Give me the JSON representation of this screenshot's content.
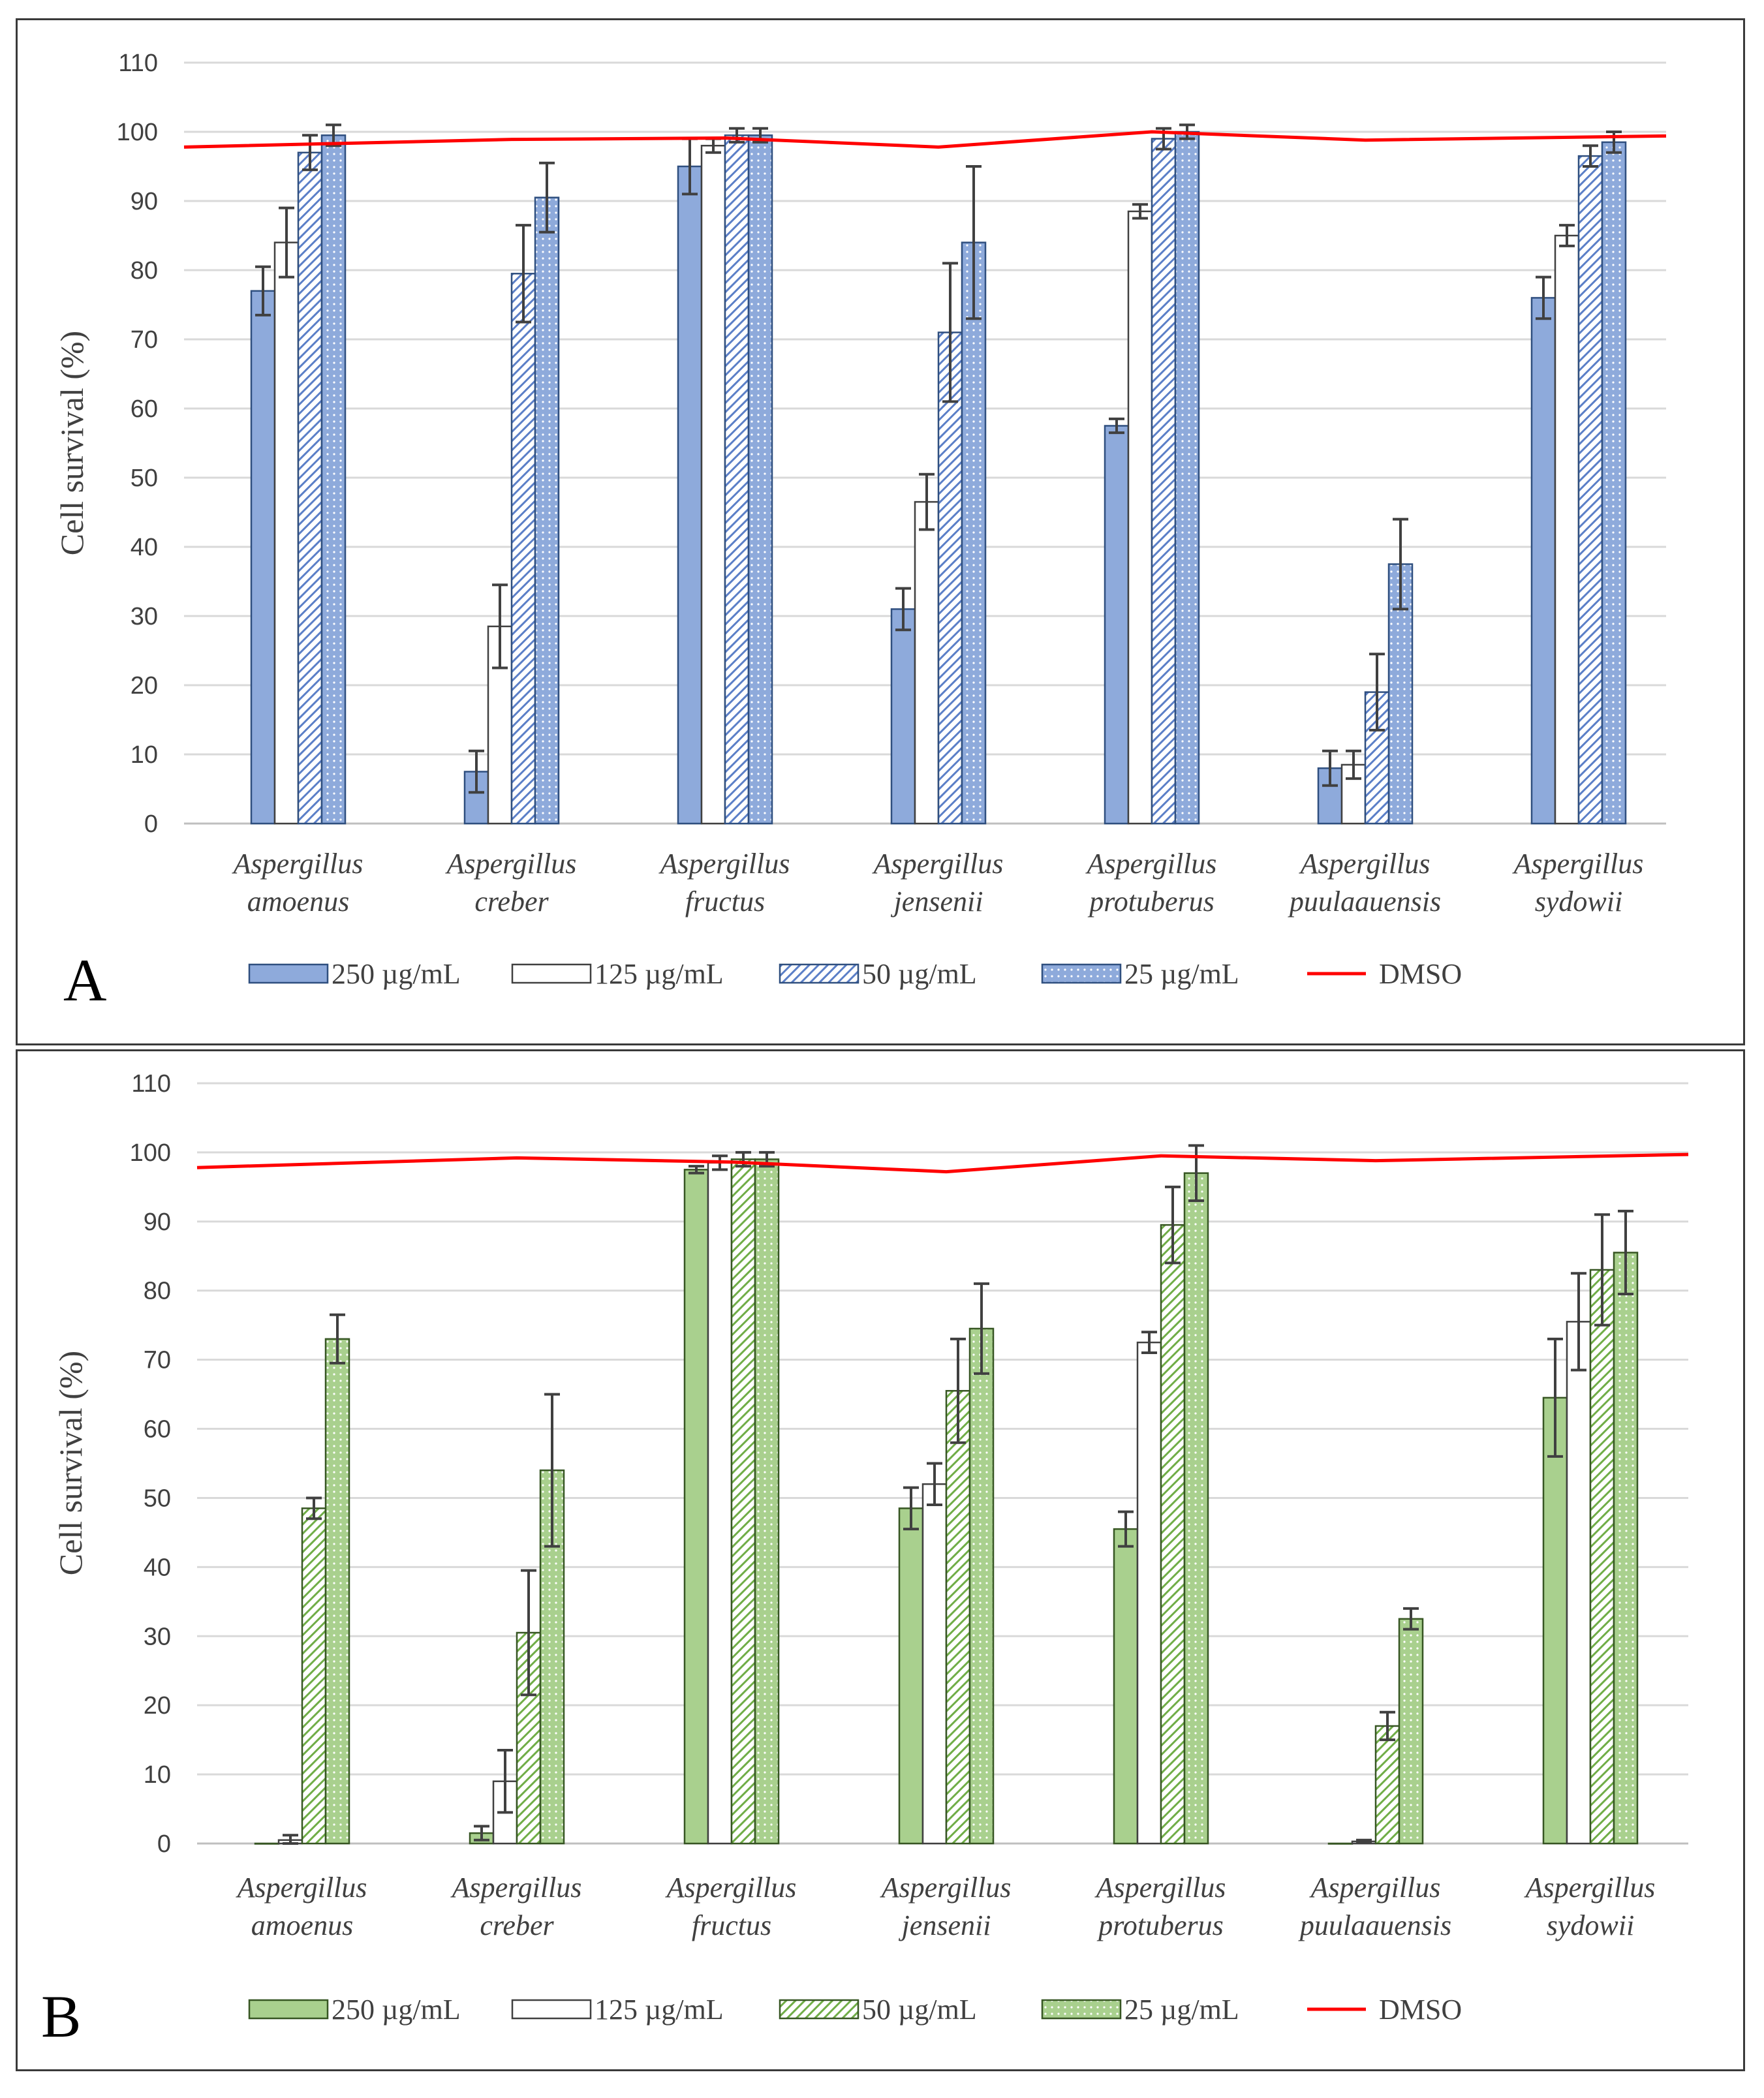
{
  "panels": [
    {
      "id": "A",
      "label": "A",
      "colors": {
        "fill": "#8eaadb",
        "border": "#2f4f7f",
        "pattern": "#5b7fc7",
        "grid": "#d9d9d9",
        "dmso": "#ff0000",
        "error": "#404040"
      }
    },
    {
      "id": "B",
      "label": "B",
      "colors": {
        "fill": "#a9d08e",
        "border": "#375623",
        "pattern": "#70ad47",
        "grid": "#d9d9d9",
        "dmso": "#ff0000",
        "error": "#404040"
      }
    }
  ],
  "chart_data": [
    {
      "type": "bar",
      "panel": "A",
      "title": "",
      "ylabel": "Cell survival (%)",
      "xlabel": "",
      "ylim": [
        0,
        110
      ],
      "yticks": [
        "0",
        "10",
        "20",
        "30",
        "40",
        "50",
        "60",
        "70",
        "80",
        "90",
        "100",
        "110"
      ],
      "categories": [
        [
          "Aspergillus",
          "amoenus"
        ],
        [
          "Aspergillus",
          "creber"
        ],
        [
          "Aspergillus",
          "fructus"
        ],
        [
          "Aspergillus",
          "jensenii"
        ],
        [
          "Aspergillus",
          "protuberus"
        ],
        [
          "Aspergillus",
          "puulaauensis"
        ],
        [
          "Aspergillus",
          "sydowii"
        ]
      ],
      "series": [
        {
          "name": "250 µg/mL",
          "style": "solid",
          "values": [
            77,
            7.5,
            95,
            31,
            57.5,
            8,
            76
          ],
          "errors": [
            3.5,
            3,
            4,
            3,
            1,
            2.5,
            3
          ]
        },
        {
          "name": "125 µg/mL",
          "style": "white",
          "values": [
            84,
            28.5,
            98,
            46.5,
            88.5,
            8.5,
            85
          ],
          "errors": [
            5,
            6,
            1,
            4,
            1,
            2,
            1.5
          ]
        },
        {
          "name": "50 µg/mL",
          "style": "hatch",
          "values": [
            97,
            79.5,
            99.5,
            71,
            99,
            19,
            96.5
          ],
          "errors": [
            2.5,
            7,
            1,
            10,
            1.5,
            5.5,
            1.5
          ]
        },
        {
          "name": "25 µg/mL",
          "style": "dots",
          "values": [
            99.5,
            90.5,
            99.5,
            84,
            100,
            37.5,
            98.5
          ],
          "errors": [
            1.5,
            5,
            1,
            11,
            1,
            6.5,
            1.5
          ]
        }
      ],
      "line": {
        "name": "DMSO",
        "values": [
          97.8,
          98.9,
          99.1,
          97.8,
          100,
          98.8,
          99.4
        ]
      },
      "legend_position": "bottom"
    },
    {
      "type": "bar",
      "panel": "B",
      "title": "",
      "ylabel": "Cell survival (%)",
      "xlabel": "",
      "ylim": [
        0,
        110
      ],
      "yticks": [
        "0",
        "10",
        "20",
        "30",
        "40",
        "50",
        "60",
        "70",
        "80",
        "90",
        "100",
        "110"
      ],
      "categories": [
        [
          "Aspergillus",
          "amoenus"
        ],
        [
          "Aspergillus",
          "creber"
        ],
        [
          "Aspergillus",
          "fructus"
        ],
        [
          "Aspergillus",
          "jensenii"
        ],
        [
          "Aspergillus",
          "protuberus"
        ],
        [
          "Aspergillus",
          "puulaauensis"
        ],
        [
          "Aspergillus",
          "sydowii"
        ]
      ],
      "series": [
        {
          "name": "250 µg/mL",
          "style": "solid",
          "values": [
            0,
            1.5,
            97.5,
            48.5,
            45.5,
            0,
            64.5
          ],
          "errors": [
            0,
            1,
            0.5,
            3,
            2.5,
            0,
            8.5
          ]
        },
        {
          "name": "125 µg/mL",
          "style": "white",
          "values": [
            0.5,
            9,
            98.5,
            52,
            72.5,
            0.3,
            75.5
          ],
          "errors": [
            0.7,
            4.5,
            1,
            3,
            1.5,
            0.2,
            7
          ]
        },
        {
          "name": "50 µg/mL",
          "style": "hatch",
          "values": [
            48.5,
            30.5,
            99,
            65.5,
            89.5,
            17,
            83
          ],
          "errors": [
            1.5,
            9,
            1,
            7.5,
            5.5,
            2,
            8
          ]
        },
        {
          "name": "25 µg/mL",
          "style": "dots",
          "values": [
            73,
            54,
            99,
            74.5,
            97,
            32.5,
            85.5
          ],
          "errors": [
            3.5,
            11,
            1,
            6.5,
            4,
            1.5,
            6
          ]
        }
      ],
      "line": {
        "name": "DMSO",
        "values": [
          97.8,
          99.2,
          98.6,
          97.2,
          99.5,
          98.8,
          99.7
        ]
      },
      "legend_position": "bottom"
    }
  ]
}
